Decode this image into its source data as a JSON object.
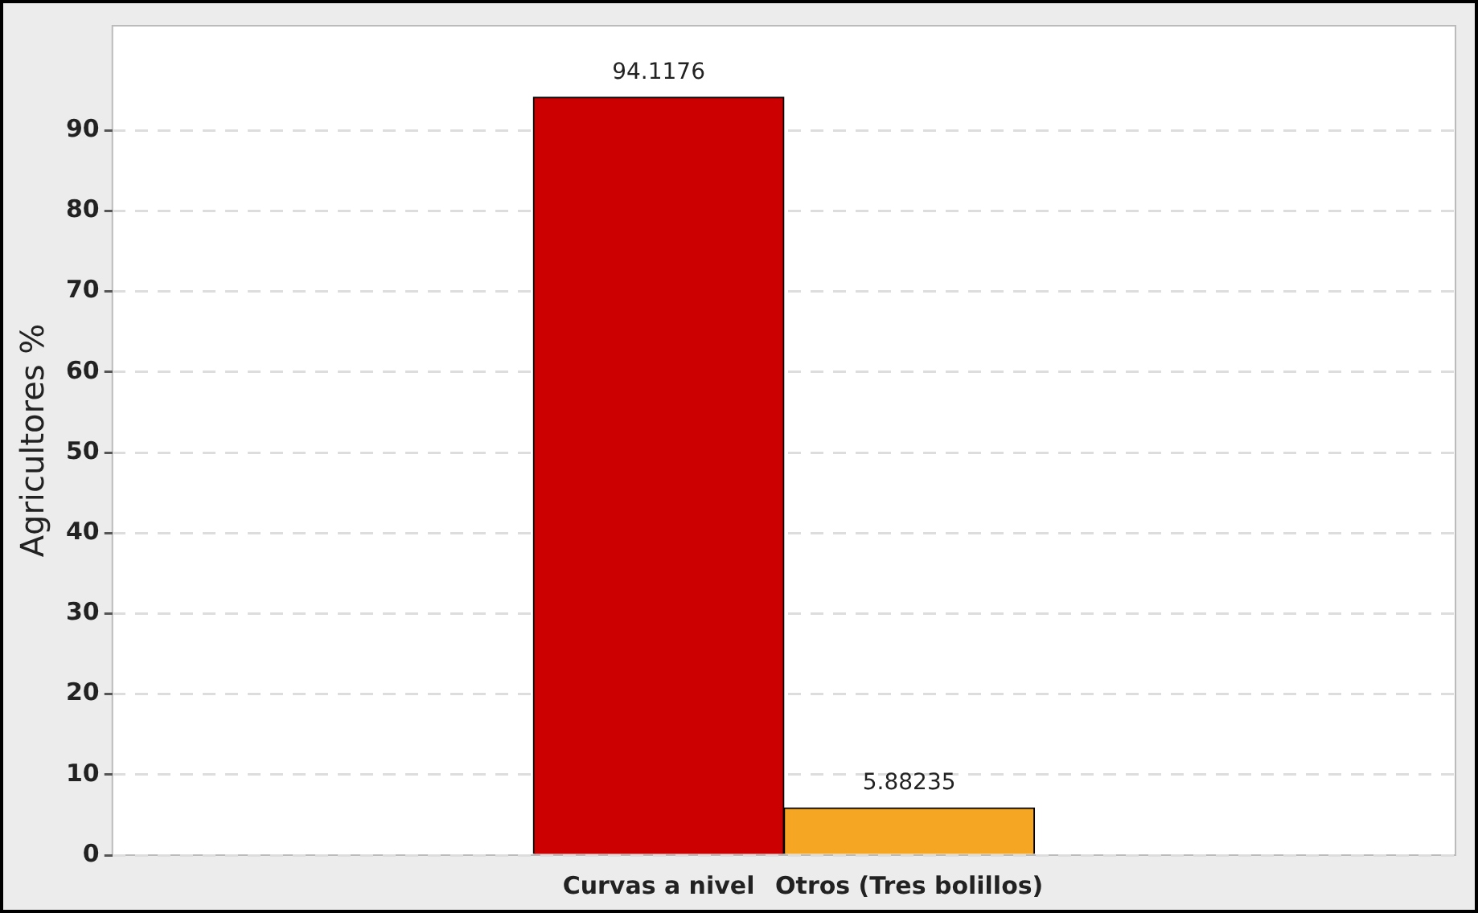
{
  "chart_data": {
    "type": "bar",
    "ylabel": "Agricultores %",
    "categories": [
      "Curvas a nivel",
      "Otros (Tres bolillos)"
    ],
    "values": [
      94.1176,
      5.88235
    ],
    "colors": [
      "#cc0000",
      "#f5a623"
    ],
    "ylim": [
      0,
      103
    ],
    "yticks": [
      0,
      10,
      20,
      30,
      40,
      50,
      60,
      70,
      80,
      90
    ],
    "grid": "y",
    "data_labels": true,
    "legend": false
  }
}
